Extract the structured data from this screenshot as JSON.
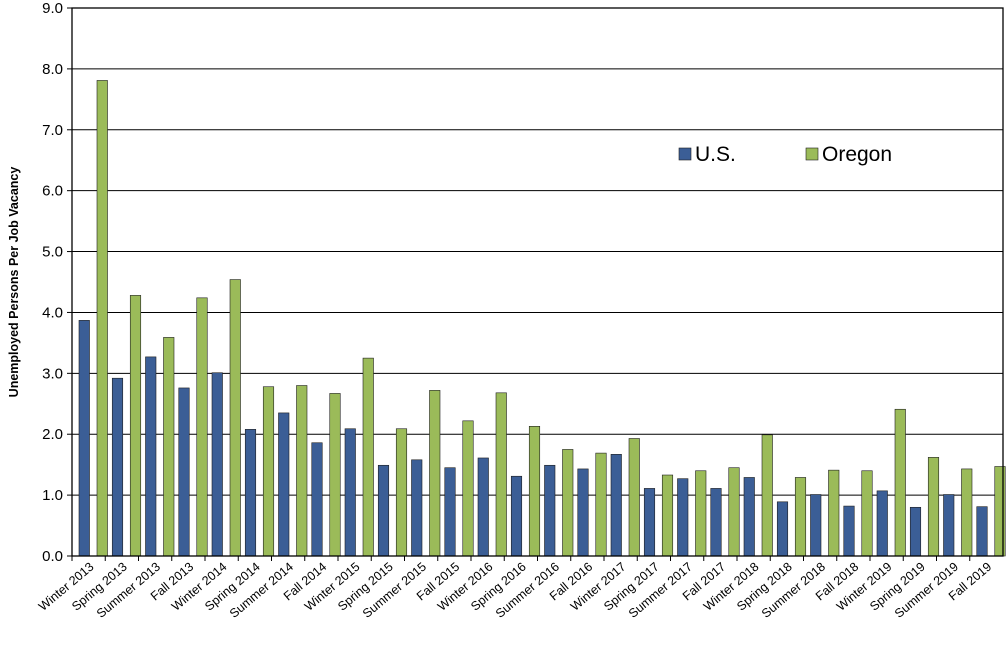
{
  "chart_data": {
    "type": "bar",
    "title": "",
    "xlabel": "",
    "ylabel": "Unemployed Persons Per Job Vacancy",
    "ylim": [
      0,
      9
    ],
    "yticks": [
      "0.0",
      "1.0",
      "2.0",
      "3.0",
      "4.0",
      "5.0",
      "6.0",
      "7.0",
      "8.0",
      "9.0"
    ],
    "grid": true,
    "legend_position": "upper-right",
    "categories": [
      "Winter 2013",
      "Spring 2013",
      "Summer 2013",
      "Fall 2013",
      "Winter 2014",
      "Spring 2014",
      "Summer 2014",
      "Fall 2014",
      "Winter 2015",
      "Spring 2015",
      "Summer 2015",
      "Fall 2015",
      "Winter 2016",
      "Spring 2016",
      "Summer 2016",
      "Fall 2016",
      "Winter 2017",
      "Spring 2017",
      "Summer 2017",
      "Fall 2017",
      "Winter 2018",
      "Spring 2018",
      "Summer 2018",
      "Fall 2018",
      "Winter 2019",
      "Spring 2019",
      "Summer 2019",
      "Fall 2019"
    ],
    "series": [
      {
        "name": "U.S.",
        "color": "#3B5E96",
        "values": [
          3.87,
          2.92,
          3.27,
          2.76,
          3.01,
          2.08,
          2.35,
          1.86,
          2.09,
          1.49,
          1.58,
          1.45,
          1.61,
          1.31,
          1.49,
          1.43,
          1.67,
          1.11,
          1.27,
          1.11,
          1.29,
          0.89,
          1.01,
          0.82,
          1.07,
          0.8,
          1.01,
          0.81
        ]
      },
      {
        "name": "Oregon",
        "color": "#9BBB59",
        "values": [
          7.81,
          4.28,
          3.59,
          4.24,
          4.54,
          2.78,
          2.8,
          2.67,
          3.25,
          2.09,
          2.72,
          2.22,
          2.68,
          2.13,
          1.75,
          1.69,
          1.93,
          1.33,
          1.4,
          1.45,
          1.99,
          1.29,
          1.41,
          1.4,
          2.41,
          1.62,
          1.43,
          1.47
        ]
      }
    ]
  }
}
